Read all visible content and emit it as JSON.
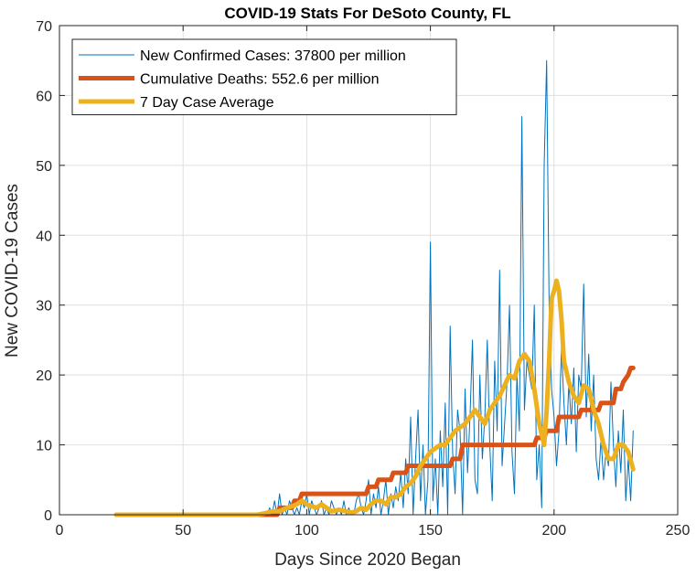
{
  "chart_data": {
    "type": "line",
    "title": "COVID-19 Stats For DeSoto County, FL",
    "xlabel": "Days Since 2020 Began",
    "ylabel": "New COVID-19 Cases",
    "xlim": [
      0,
      250
    ],
    "ylim": [
      0,
      70
    ],
    "xticks": [
      0,
      50,
      100,
      150,
      200,
      250
    ],
    "yticks": [
      0,
      10,
      20,
      30,
      40,
      50,
      60,
      70
    ],
    "grid": true,
    "legend_position": "top-left",
    "series": [
      {
        "name": "New Confirmed Cases: 37800 per million",
        "color": "#0072bd",
        "width": 1,
        "x": [
          23,
          50,
          80,
          84,
          85,
          86,
          87,
          88,
          89,
          90,
          91,
          92,
          93,
          94,
          95,
          96,
          97,
          98,
          99,
          100,
          101,
          102,
          103,
          104,
          105,
          106,
          107,
          108,
          109,
          110,
          111,
          112,
          113,
          114,
          115,
          116,
          117,
          118,
          119,
          120,
          121,
          122,
          123,
          124,
          125,
          126,
          127,
          128,
          129,
          130,
          131,
          132,
          133,
          134,
          135,
          136,
          137,
          138,
          139,
          140,
          141,
          142,
          143,
          144,
          145,
          146,
          147,
          148,
          149,
          150,
          151,
          152,
          153,
          154,
          155,
          156,
          157,
          158,
          159,
          160,
          161,
          162,
          163,
          164,
          165,
          166,
          167,
          168,
          169,
          170,
          171,
          172,
          173,
          174,
          175,
          176,
          177,
          178,
          179,
          180,
          181,
          182,
          183,
          184,
          185,
          186,
          187,
          188,
          189,
          190,
          191,
          192,
          193,
          194,
          195,
          196,
          197,
          198,
          199,
          200,
          201,
          202,
          203,
          204,
          205,
          206,
          207,
          208,
          209,
          210,
          211,
          212,
          213,
          214,
          215,
          216,
          217,
          218,
          219,
          220,
          221,
          222,
          223,
          224,
          225,
          226,
          227,
          228,
          229,
          230,
          231,
          232
        ],
        "y": [
          0,
          0,
          0,
          0,
          1,
          0,
          2,
          0,
          3,
          0,
          1,
          0,
          2,
          1,
          0,
          1,
          0,
          2,
          1,
          3,
          0,
          2,
          1,
          0,
          1,
          2,
          0,
          1,
          0,
          2,
          1,
          0,
          1,
          0,
          2,
          0,
          1,
          0,
          0,
          2,
          3,
          1,
          0,
          2,
          5,
          0,
          3,
          1,
          4,
          0,
          2,
          5,
          0,
          3,
          1,
          4,
          2,
          6,
          1,
          8,
          3,
          14,
          0,
          8,
          15,
          2,
          10,
          0,
          5,
          39,
          2,
          8,
          0,
          12,
          4,
          16,
          0,
          27,
          9,
          3,
          15,
          12,
          0,
          18,
          6,
          14,
          25,
          5,
          3,
          20,
          8,
          14,
          25,
          10,
          2,
          22,
          12,
          35,
          7,
          13,
          19,
          30,
          9,
          3,
          20,
          12,
          57,
          15,
          22,
          20,
          18,
          30,
          5,
          10,
          1,
          50,
          65,
          30,
          18,
          14,
          7,
          12,
          24,
          16,
          10,
          19,
          13,
          21,
          9,
          20,
          18,
          33,
          14,
          23,
          12,
          20,
          8,
          5,
          11,
          5,
          9,
          7,
          19,
          10,
          4,
          12,
          6,
          15,
          2,
          8,
          2,
          12
        ]
      },
      {
        "name": "Cumulative Deaths: 552.6 per million",
        "color": "#d95319",
        "width": 5,
        "x": [
          23,
          88,
          89,
          94,
          95,
          97,
          98,
          124,
          125,
          128,
          129,
          131,
          132,
          134,
          135,
          140,
          141,
          152,
          153,
          158,
          159,
          162,
          163,
          192,
          193,
          196,
          197,
          201,
          202,
          210,
          211,
          218,
          219,
          224,
          225,
          227,
          228,
          230,
          231,
          232
        ],
        "y": [
          0,
          0,
          1,
          1,
          2,
          2,
          3,
          3,
          4,
          4,
          5,
          5,
          5,
          5,
          6,
          6,
          7,
          7,
          7,
          7,
          8,
          8,
          10,
          10,
          11,
          11,
          12,
          12,
          14,
          14,
          15,
          15,
          16,
          16,
          18,
          18,
          19,
          20,
          21,
          21
        ]
      },
      {
        "name": "7 Day Case Average",
        "color": "#edb120",
        "width": 5,
        "x": [
          23,
          80,
          83,
          86,
          89,
          92,
          94,
          96,
          98,
          100,
          102,
          104,
          106,
          108,
          110,
          113,
          116,
          118,
          120,
          122,
          124,
          126,
          128,
          130,
          132,
          134,
          136,
          138,
          140,
          142,
          144,
          146,
          148,
          150,
          152,
          154,
          156,
          158,
          160,
          162,
          164,
          166,
          168,
          170,
          172,
          174,
          176,
          178,
          180,
          182,
          184,
          186,
          188,
          190,
          192,
          194,
          196,
          197,
          198,
          199,
          200,
          201,
          202,
          203,
          204,
          206,
          208,
          210,
          212,
          214,
          216,
          218,
          220,
          222,
          224,
          226,
          228,
          230,
          232
        ],
        "y": [
          0,
          0,
          0.2,
          0.5,
          0.5,
          1,
          1.2,
          1.5,
          2,
          1.5,
          1.2,
          1,
          1.5,
          1,
          0.5,
          0.7,
          0.5,
          0.3,
          0.5,
          1,
          0.7,
          1.5,
          2,
          2,
          1.5,
          2.5,
          2.5,
          3,
          4,
          4.5,
          5.5,
          7,
          8,
          9,
          9.5,
          10,
          10,
          11,
          12,
          12.5,
          13,
          14,
          15,
          14,
          13,
          15,
          16,
          17,
          18.5,
          20,
          19.5,
          22,
          23,
          22,
          18,
          13,
          10,
          15,
          22,
          31,
          32,
          33.5,
          32,
          28,
          22,
          19,
          17,
          16,
          18.5,
          18,
          15,
          13,
          10,
          8,
          8,
          10,
          10,
          9,
          6.5
        ]
      }
    ]
  }
}
